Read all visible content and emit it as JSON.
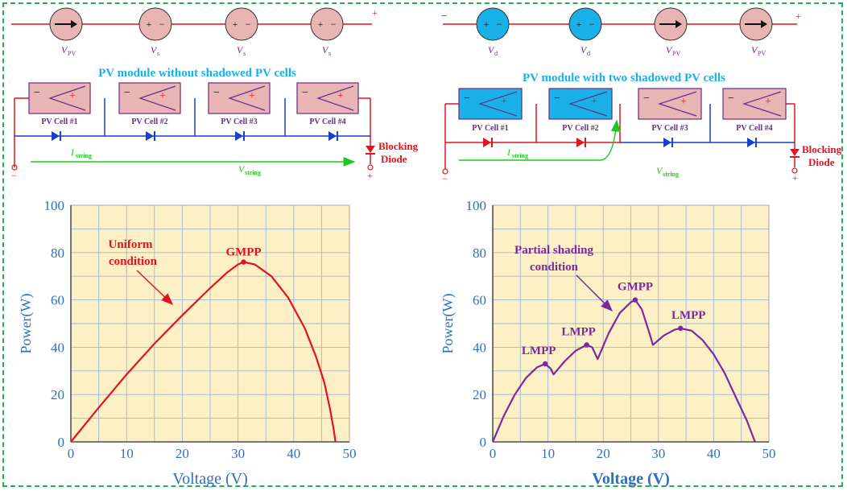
{
  "colors": {
    "wire": "#e0141e",
    "diode_wire": "#1a3fd1",
    "arrow_green": "#1ec81e",
    "cell_normal": "#e8b4b4",
    "cell_shadowed": "#1ab0e8",
    "cell_border": "#6a2a8a",
    "title_blue": "#1ab0e8",
    "plot_bg": "#fdf0c4",
    "axis_blue": "#2f6fbf",
    "curve_red": "#e0141e",
    "curve_purple": "#7a2aa0",
    "frame_green": "#22b14c"
  },
  "left": {
    "title": "PV module without shadowed PV cells",
    "top_sources": [
      {
        "sym": "arrow",
        "label": "V",
        "sub": "PV"
      },
      {
        "sym": "+ −",
        "label": "V",
        "sub": "s"
      },
      {
        "sym": "+ −",
        "label": "V",
        "sub": "s"
      },
      {
        "sym": "+ −",
        "label": "V",
        "sub": "s"
      }
    ],
    "cells": [
      "PV Cell #1",
      "PV Cell #2",
      "PV Cell #3",
      "PV Cell #4"
    ],
    "cell_minus": "−",
    "cell_plus": "+",
    "current_label": "I",
    "current_sub": "string",
    "voltage_label": "V",
    "voltage_sub": "string",
    "blocking_diode": [
      "Blocking",
      "Diode"
    ],
    "term_plus": "+",
    "term_minus": "−"
  },
  "right": {
    "title": "PV module with two shadowed PV cells",
    "top_sources": [
      {
        "sym": "+ −",
        "label": "V",
        "sub": "d"
      },
      {
        "sym": "+ −",
        "label": "V",
        "sub": "d"
      },
      {
        "sym": "arrow",
        "label": "V",
        "sub": "PV"
      },
      {
        "sym": "arrow",
        "label": "V",
        "sub": "PV"
      }
    ],
    "cells": [
      "PV Cell #1",
      "PV Cell #2",
      "PV Cell #3",
      "PV Cell #4"
    ],
    "cell_minus": "−",
    "cell_plus": "+",
    "current_label": "I",
    "current_sub": "string",
    "voltage_label": "V",
    "voltage_sub": "string",
    "blocking_diode": [
      "Blocking",
      "Diode"
    ],
    "term_plus": "+",
    "term_minus": "−"
  },
  "chart_data": [
    {
      "type": "line",
      "xlabel": "Voltage (V)",
      "ylabel": "Power(W)",
      "xlim": [
        0,
        50
      ],
      "ylim": [
        0,
        100
      ],
      "xticks": [
        0,
        10,
        20,
        30,
        40,
        50
      ],
      "yticks": [
        0,
        20,
        40,
        60,
        80,
        100
      ],
      "grid": true,
      "series": [
        {
          "x": [
            0,
            5,
            10,
            15,
            20,
            25,
            28,
            30,
            31,
            33,
            36,
            39,
            42,
            44,
            45.5,
            46.5,
            47.2,
            47.5
          ],
          "y": [
            0,
            14.5,
            28.5,
            41.5,
            53.5,
            65,
            71.5,
            75,
            76,
            75,
            70,
            61,
            48,
            36,
            25,
            14,
            5,
            0
          ]
        }
      ],
      "annotations": [
        {
          "text": "Uniform",
          "text2": "condition"
        },
        {
          "text": "GMPP",
          "point": [
            31,
            76
          ]
        }
      ]
    },
    {
      "type": "line",
      "xlabel": "Voltage (V)",
      "ylabel": "Power(W)",
      "xlim": [
        0,
        50
      ],
      "ylim": [
        0,
        100
      ],
      "xticks": [
        0,
        10,
        20,
        30,
        40,
        50
      ],
      "yticks": [
        0,
        20,
        40,
        60,
        80,
        100
      ],
      "grid": true,
      "series": [
        {
          "x": [
            0,
            2,
            4,
            6,
            8,
            9.5,
            10.5,
            11,
            13,
            15,
            17,
            18,
            19,
            21,
            23,
            25,
            25.8,
            27,
            28.5,
            29,
            31,
            33,
            34,
            36,
            38,
            40,
            42,
            44,
            46,
            47.5
          ],
          "y": [
            0,
            11,
            20,
            27,
            31.5,
            33,
            31,
            28.5,
            34,
            38.5,
            41,
            40,
            35,
            46,
            54.5,
            59,
            60,
            56,
            45,
            41,
            45,
            47.5,
            48,
            47,
            43,
            37,
            29,
            19,
            9,
            0
          ]
        }
      ],
      "annotations": [
        {
          "text": "Partial shading",
          "text2": "condition"
        },
        {
          "text": "LMPP",
          "point": [
            9.5,
            33
          ]
        },
        {
          "text": "LMPP",
          "point": [
            17,
            41
          ]
        },
        {
          "text": "GMPP",
          "point": [
            25.8,
            60
          ]
        },
        {
          "text": "LMPP",
          "point": [
            34,
            48
          ]
        }
      ]
    }
  ]
}
